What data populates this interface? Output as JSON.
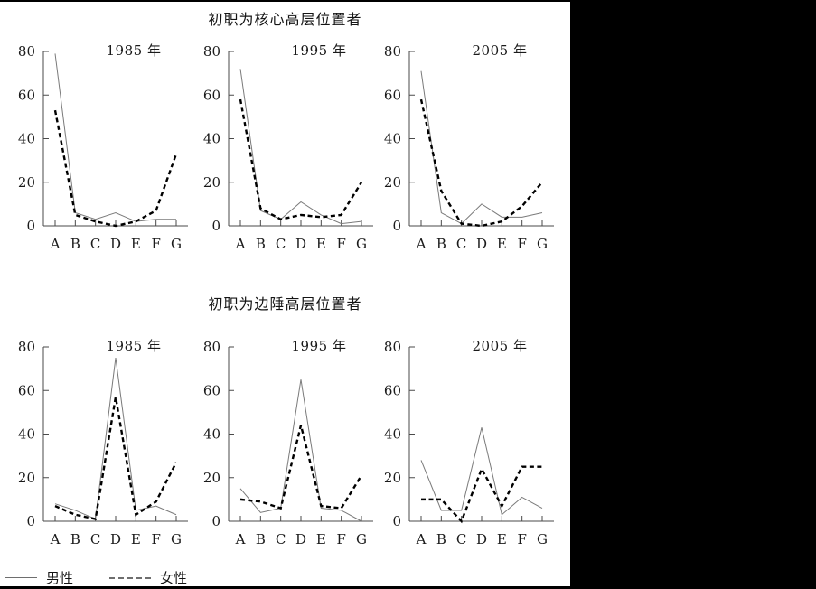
{
  "chart_data": {
    "type": "line",
    "categories": [
      "A",
      "B",
      "C",
      "D",
      "E",
      "F",
      "G"
    ],
    "y_ticks": [
      0,
      20,
      40,
      60,
      80
    ],
    "ylim": [
      0,
      80
    ],
    "grid": false,
    "legend_position": "bottom-left",
    "legend": [
      {
        "name": "男性",
        "style": "solid"
      },
      {
        "name": "女性",
        "style": "dashed"
      }
    ],
    "rows": [
      {
        "row_title": "初职为核心高层位置者",
        "charts": [
          {
            "title": "1985 年",
            "series": [
              {
                "name": "男性",
                "style": "solid",
                "values": [
                  79,
                  6,
                  3,
                  6,
                  2,
                  3,
                  3
                ]
              },
              {
                "name": "女性",
                "style": "dashed",
                "values": [
                  53,
                  5,
                  2,
                  0,
                  2,
                  7,
                  33
                ]
              }
            ]
          },
          {
            "title": "1995 年",
            "series": [
              {
                "name": "男性",
                "style": "solid",
                "values": [
                  72,
                  7,
                  3,
                  11,
                  5,
                  1,
                  2
                ]
              },
              {
                "name": "女性",
                "style": "dashed",
                "values": [
                  58,
                  8,
                  3,
                  5,
                  4,
                  5,
                  20
                ]
              }
            ]
          },
          {
            "title": "2005 年",
            "series": [
              {
                "name": "男性",
                "style": "solid",
                "values": [
                  71,
                  6,
                  1,
                  10,
                  4,
                  4,
                  6
                ]
              },
              {
                "name": "女性",
                "style": "dashed",
                "values": [
                  58,
                  16,
                  1,
                  0,
                  2,
                  9,
                  20
                ]
              }
            ]
          }
        ]
      },
      {
        "row_title": "初职为边陲高层位置者",
        "charts": [
          {
            "title": "1985 年",
            "series": [
              {
                "name": "男性",
                "style": "solid",
                "values": [
                  8,
                  5,
                  1,
                  75,
                  5,
                  7,
                  3
                ]
              },
              {
                "name": "女性",
                "style": "dashed",
                "values": [
                  7,
                  3,
                  1,
                  57,
                  3,
                  9,
                  27
                ]
              }
            ]
          },
          {
            "title": "1995 年",
            "series": [
              {
                "name": "男性",
                "style": "solid",
                "values": [
                  15,
                  4,
                  6,
                  65,
                  6,
                  5,
                  0
                ]
              },
              {
                "name": "女性",
                "style": "dashed",
                "values": [
                  10,
                  9,
                  6,
                  44,
                  7,
                  6,
                  21
                ]
              }
            ]
          },
          {
            "title": "2005 年",
            "series": [
              {
                "name": "男性",
                "style": "solid",
                "values": [
                  28,
                  5,
                  5,
                  43,
                  3,
                  11,
                  6
                ]
              },
              {
                "name": "女性",
                "style": "dashed",
                "values": [
                  10,
                  10,
                  0,
                  24,
                  7,
                  25,
                  25
                ]
              }
            ]
          }
        ]
      }
    ]
  }
}
